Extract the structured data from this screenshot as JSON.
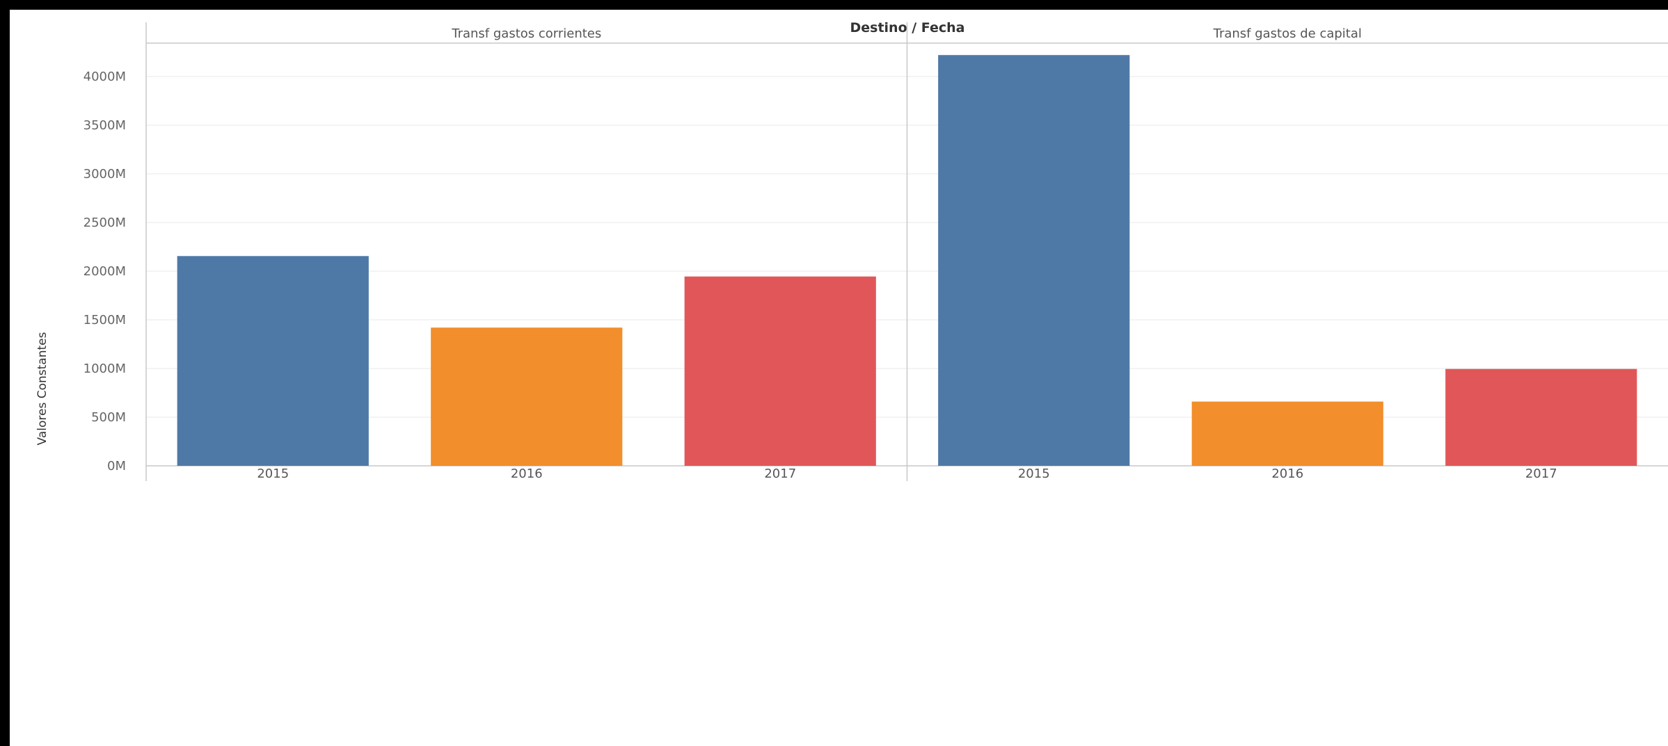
{
  "chart_data": {
    "type": "bar",
    "title": "Destino / Fecha",
    "ylabel": "Valores Constantes",
    "xlabel": "",
    "ylim": [
      0,
      4300
    ],
    "y_ticks": [
      0,
      500,
      1000,
      1500,
      2000,
      2500,
      3000,
      3500,
      4000
    ],
    "y_tick_labels": [
      "0M",
      "500M",
      "1000M",
      "1500M",
      "2000M",
      "2500M",
      "3000M",
      "3500M",
      "4000M"
    ],
    "grid": true,
    "panels": [
      {
        "label": "Transf gastos corrientes",
        "categories": [
          "2015",
          "2016",
          "2017"
        ],
        "values": [
          2155,
          1420,
          1945
        ]
      },
      {
        "label": "Transf gastos de capital",
        "categories": [
          "2015",
          "2016",
          "2017"
        ],
        "values": [
          4220,
          660,
          995
        ]
      }
    ],
    "colors": {
      "2015": "#4e79a7",
      "2016": "#f28e2b",
      "2017": "#e15759"
    }
  }
}
